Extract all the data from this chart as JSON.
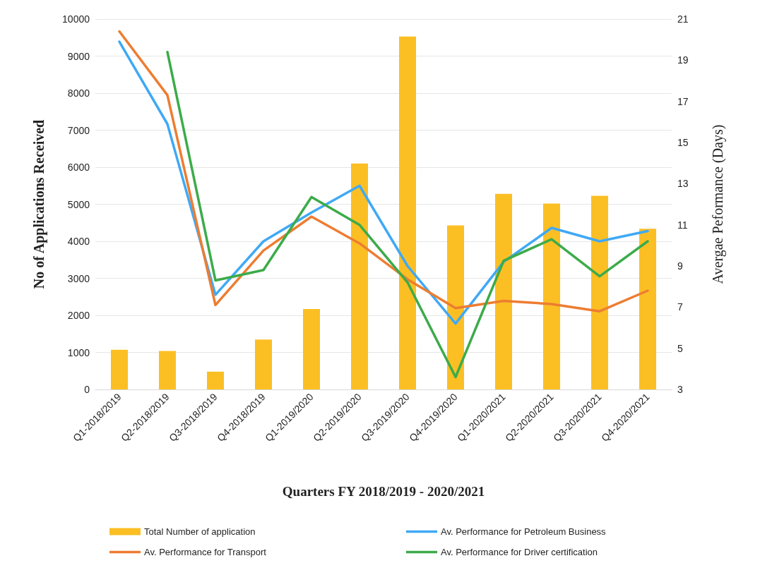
{
  "chart_data": {
    "type": "bar",
    "xlabel": "Quarters FY 2018/2019 - 2020/2021",
    "ylabel": "No of Applications Received",
    "y2label": "Avergae Peformance (Days)",
    "categories": [
      "Q1-2018/2019",
      "Q2-2018/2019",
      "Q3-2018/2019",
      "Q4-2018/2019",
      "Q1-2019/2020",
      "Q2-2019/2020",
      "Q3-2019/2020",
      "Q4-2019/2020",
      "Q1-2020/2021",
      "Q2-2020/2021",
      "Q3-2020/2021",
      "Q4-2020/2021"
    ],
    "series": [
      {
        "name": "Total Number of application",
        "color": "#fbbf24",
        "values": [
          1070,
          1040,
          480,
          1350,
          2170,
          6100,
          9530,
          4430,
          5280,
          5020,
          5230,
          4340
        ]
      },
      {
        "name": "Av. Performance for Petroleum Business",
        "type": "line",
        "axis": "y2",
        "color": "#3fa9f5",
        "values": [
          19.9,
          15.9,
          7.6,
          10.2,
          11.6,
          12.9,
          9.0,
          6.2,
          9.2,
          10.85,
          10.2,
          10.7
        ]
      },
      {
        "name": "Av. Performance for Transport",
        "type": "line",
        "axis": "y2",
        "color": "#ed7d31",
        "values": [
          20.4,
          17.3,
          7.1,
          9.75,
          11.4,
          10.1,
          8.35,
          6.95,
          7.3,
          7.15,
          6.8,
          7.8
        ]
      },
      {
        "name": "Av. Performance for Driver certification",
        "type": "line",
        "axis": "y2",
        "color": "#3cab4a",
        "values": [
          null,
          19.4,
          8.3,
          8.8,
          12.35,
          11.0,
          8.2,
          3.6,
          9.25,
          10.3,
          8.5,
          10.2
        ]
      }
    ],
    "ylim": [
      0,
      10000
    ],
    "yticks": [
      0,
      1000,
      2000,
      3000,
      4000,
      5000,
      6000,
      7000,
      8000,
      9000,
      10000
    ],
    "y2lim": [
      3,
      21
    ],
    "y2ticks": [
      3,
      5,
      7,
      9,
      11,
      13,
      15,
      17,
      19,
      21
    ],
    "grid": "y",
    "legend": "bottom",
    "marker": "none",
    "line_style": "solid"
  }
}
